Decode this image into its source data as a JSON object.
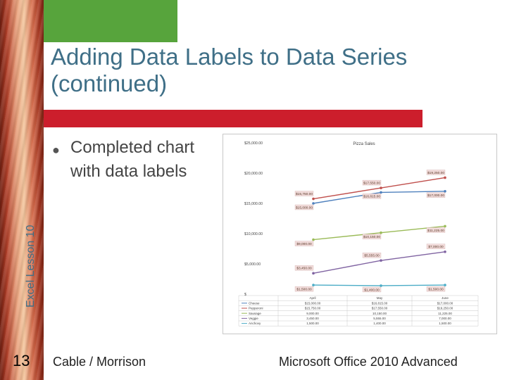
{
  "slide": {
    "title": "Adding Data Labels to Data Series (continued)",
    "vertical_label": "Excel Lesson 10",
    "bullet": "Completed chart with data labels",
    "slide_number": "13",
    "footer_left": "Cable / Morrison",
    "footer_right": "Microsoft Office 2010 Advanced"
  },
  "colors": {
    "title": "#3f6f87",
    "red_bar": "#cc1e2c",
    "green_box": "#57a43c"
  },
  "chart_data": {
    "type": "line",
    "title": "Pizza Sales",
    "categories": [
      "April",
      "May",
      "June"
    ],
    "yticks": [
      "$25,000.00",
      "$20,000.00",
      "$15,000.00",
      "$10,000.00",
      "$5,000.00",
      "$"
    ],
    "ylim": [
      0,
      25000
    ],
    "grid": false,
    "legend": "data table below chart",
    "series": [
      {
        "name": "Cheese",
        "color": "#4f81bd",
        "values": [
          15000,
          16815,
          17000
        ],
        "labels": [
          "$15,000.00",
          "$16,815.00",
          "$17,000.00"
        ],
        "table": [
          "$15,000.00",
          "$16,815.00",
          "$17,000.00"
        ]
      },
      {
        "name": "Pepperoni",
        "color": "#c0504d",
        "values": [
          15750,
          17550,
          19250
        ],
        "labels": [
          "$15,750.00",
          "$17,550.00",
          "$19,250.00"
        ],
        "table": [
          "$15,750.00",
          "$17,550.00",
          "$19,250.00"
        ]
      },
      {
        "name": "Sausage",
        "color": "#9bbb59",
        "values": [
          9000,
          10150,
          11225
        ],
        "labels": [
          "$9,000.00",
          "$10,150.00",
          "$11,225.00"
        ],
        "table": [
          "9,000.00",
          "10,150.00",
          "11,225.00"
        ]
      },
      {
        "name": "Veggie",
        "color": "#8064a2",
        "values": [
          3450,
          5555,
          7000
        ],
        "labels": [
          "$3,450.00",
          "$5,555.00",
          "$7,000.00"
        ],
        "table": [
          "3,450.00",
          "5,555.00",
          "7,000.00"
        ]
      },
      {
        "name": "Anchovy",
        "color": "#4bacc6",
        "values": [
          1500,
          1400,
          1500
        ],
        "labels": [
          "$1,500.00",
          "$1,400.00",
          "$1,500.00"
        ],
        "table": [
          "1,500.00",
          "1,400.00",
          "1,500.00"
        ]
      }
    ]
  }
}
